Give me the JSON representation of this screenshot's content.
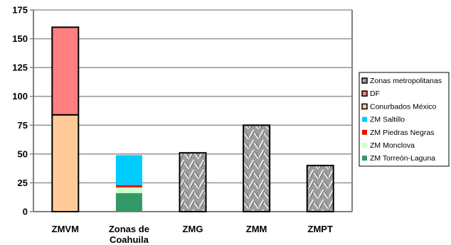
{
  "chart_data": {
    "type": "bar",
    "stacked": true,
    "categories": [
      [
        "ZMVM"
      ],
      [
        "Zonas de",
        "Coahuila"
      ],
      [
        "ZMG"
      ],
      [
        "ZMM"
      ],
      [
        "ZMPT"
      ]
    ],
    "ylim": [
      0,
      175
    ],
    "yticks": [
      "0",
      "25",
      "50",
      "75",
      "100",
      "125",
      "150",
      "175"
    ],
    "grid": true,
    "legend_position": "right",
    "series": [
      {
        "name": "Zonas metropolitanas",
        "color": "#9a9a9a",
        "pattern": "diamond-plate",
        "values": [
          0,
          0,
          51,
          75,
          40
        ]
      },
      {
        "name": "Conurbados México",
        "color": "#ffcc99",
        "values": [
          84,
          0,
          0,
          0,
          0
        ]
      },
      {
        "name": "DF",
        "color": "#ff8080",
        "values": [
          76,
          0,
          0,
          0,
          0
        ]
      },
      {
        "name": "ZM Torreón-Laguna",
        "color": "#339966",
        "values": [
          0,
          16,
          0,
          0,
          0
        ]
      },
      {
        "name": "ZM Monclova",
        "color": "#ccffcc",
        "values": [
          0,
          5,
          0,
          0,
          0
        ]
      },
      {
        "name": "ZM Piedras Negras",
        "color": "#ff0000",
        "values": [
          0,
          2,
          0,
          0,
          0
        ]
      },
      {
        "name": "ZM Saltillo",
        "color": "#00ccff",
        "values": [
          0,
          26,
          0,
          0,
          0
        ]
      }
    ],
    "legend_order": [
      "Zonas metropolitanas",
      "DF",
      "Conurbados México",
      "ZM Saltillo",
      "ZM Piedras Negras",
      "ZM Monclova",
      "ZM Torreón-Laguna"
    ]
  }
}
